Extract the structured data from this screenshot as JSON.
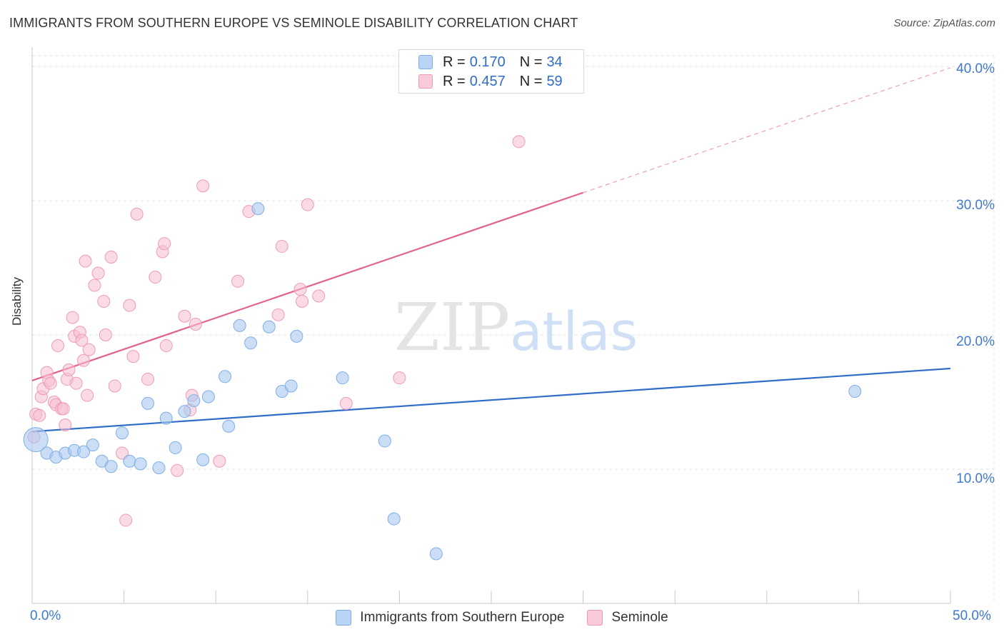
{
  "header": {
    "title": "IMMIGRANTS FROM SOUTHERN EUROPE VS SEMINOLE DISABILITY CORRELATION CHART",
    "source": "Source: ZipAtlas.com"
  },
  "watermark": {
    "zip": "ZIP",
    "atlas": "atlas"
  },
  "legend": {
    "r_label": "R =",
    "n_label": "N =",
    "series": [
      {
        "r": "0.170",
        "n": "34"
      },
      {
        "r": "0.457",
        "n": "59"
      }
    ]
  },
  "colors": {
    "blue_fill": "#a9c8ef",
    "blue_stroke": "#7eaee6",
    "blue_line": "#2f6dc8",
    "pink_fill": "#f6bdd0",
    "pink_stroke": "#ee9ab7",
    "pink_line": "#e0628e",
    "grid": "#e3e3e3",
    "tick_text": "#3e78cf"
  },
  "chart_data": {
    "type": "scatter",
    "title": "IMMIGRANTS FROM SOUTHERN EUROPE VS SEMINOLE DISABILITY CORRELATION CHART",
    "xlabel": "",
    "ylabel": "Disability",
    "xlim": [
      0,
      50
    ],
    "ylim": [
      0,
      40.8
    ],
    "x_tick_labels": [
      "0.0%",
      "50.0%"
    ],
    "y_ticks": [
      10,
      20,
      30,
      40
    ],
    "y_tick_labels": [
      "10.0%",
      "20.0%",
      "30.0%",
      "40.0%"
    ],
    "grid": true,
    "legend_position": "top-center",
    "series": [
      {
        "name": "Immigrants from Southern Europe",
        "r": 0.17,
        "n": 34,
        "trend": {
          "x0": 0,
          "y0": 12.8,
          "x1": 50,
          "y1": 17.5
        },
        "points": [
          [
            0.2,
            12.2,
            3
          ],
          [
            0.8,
            11.2,
            1
          ],
          [
            1.3,
            10.9,
            1
          ],
          [
            1.8,
            11.2,
            1
          ],
          [
            2.3,
            11.4,
            1
          ],
          [
            2.8,
            11.3,
            1
          ],
          [
            3.3,
            11.8,
            1
          ],
          [
            3.8,
            10.6,
            1
          ],
          [
            4.3,
            10.2,
            1
          ],
          [
            4.9,
            12.7,
            1
          ],
          [
            5.3,
            10.6,
            1
          ],
          [
            5.9,
            10.4,
            1
          ],
          [
            6.3,
            14.9,
            1
          ],
          [
            6.9,
            10.1,
            1
          ],
          [
            7.3,
            13.8,
            1
          ],
          [
            7.8,
            11.6,
            1
          ],
          [
            8.3,
            14.3,
            1
          ],
          [
            8.8,
            15.1,
            1
          ],
          [
            9.3,
            10.7,
            1
          ],
          [
            9.6,
            15.4,
            1
          ],
          [
            10.5,
            16.9,
            1
          ],
          [
            10.7,
            13.2,
            1
          ],
          [
            11.3,
            20.7,
            1
          ],
          [
            11.9,
            19.4,
            1
          ],
          [
            12.3,
            29.4,
            1
          ],
          [
            12.9,
            20.6,
            1
          ],
          [
            13.6,
            15.8,
            1
          ],
          [
            14.1,
            16.2,
            1
          ],
          [
            14.4,
            19.9,
            1
          ],
          [
            16.9,
            16.8,
            1
          ],
          [
            19.2,
            12.1,
            1
          ],
          [
            19.7,
            6.3,
            1
          ],
          [
            22.0,
            3.7,
            1
          ],
          [
            44.8,
            15.8,
            1
          ]
        ]
      },
      {
        "name": "Seminole",
        "r": 0.457,
        "n": 59,
        "trend": {
          "x0": 0,
          "y0": 16.6,
          "x1": 30,
          "y1": 30.6
        },
        "extension": {
          "x0": 30,
          "y0": 30.6,
          "x1": 50,
          "y1": 39.9
        },
        "points": [
          [
            0.1,
            12.4
          ],
          [
            0.2,
            14.1
          ],
          [
            0.4,
            14.0
          ],
          [
            0.5,
            15.4
          ],
          [
            0.6,
            16.0
          ],
          [
            0.8,
            17.2
          ],
          [
            0.9,
            16.6
          ],
          [
            1.0,
            16.4
          ],
          [
            1.2,
            15.0
          ],
          [
            1.3,
            14.8
          ],
          [
            1.4,
            19.2
          ],
          [
            1.6,
            14.5
          ],
          [
            1.7,
            14.5
          ],
          [
            1.8,
            13.3
          ],
          [
            1.9,
            16.7
          ],
          [
            2.0,
            17.4
          ],
          [
            2.2,
            21.3
          ],
          [
            2.3,
            19.9
          ],
          [
            2.4,
            16.4
          ],
          [
            2.6,
            20.2
          ],
          [
            2.7,
            19.6
          ],
          [
            2.8,
            18.1
          ],
          [
            2.9,
            25.5
          ],
          [
            3.0,
            15.5
          ],
          [
            3.1,
            18.9
          ],
          [
            3.4,
            23.7
          ],
          [
            3.6,
            24.6
          ],
          [
            3.9,
            22.5
          ],
          [
            4.0,
            20.0
          ],
          [
            4.3,
            25.8
          ],
          [
            4.5,
            16.2
          ],
          [
            4.9,
            11.2
          ],
          [
            5.1,
            6.2
          ],
          [
            5.3,
            22.2
          ],
          [
            5.5,
            18.4
          ],
          [
            5.7,
            29.0
          ],
          [
            6.3,
            16.7
          ],
          [
            6.7,
            24.3
          ],
          [
            7.1,
            26.2
          ],
          [
            7.2,
            26.8
          ],
          [
            7.3,
            19.2
          ],
          [
            7.9,
            9.9
          ],
          [
            8.3,
            21.4
          ],
          [
            8.6,
            14.4
          ],
          [
            8.7,
            15.5
          ],
          [
            8.9,
            20.8
          ],
          [
            9.3,
            31.1
          ],
          [
            10.2,
            10.6
          ],
          [
            11.2,
            24.0
          ],
          [
            11.8,
            29.2
          ],
          [
            13.4,
            21.5
          ],
          [
            13.6,
            26.6
          ],
          [
            14.6,
            23.4
          ],
          [
            14.7,
            22.5
          ],
          [
            15.0,
            29.7
          ],
          [
            15.6,
            22.9
          ],
          [
            17.1,
            14.9
          ],
          [
            20.0,
            16.8
          ],
          [
            26.5,
            34.4
          ]
        ]
      }
    ]
  },
  "bottom_legend": {
    "items": [
      "Immigrants from Southern Europe",
      "Seminole"
    ]
  }
}
